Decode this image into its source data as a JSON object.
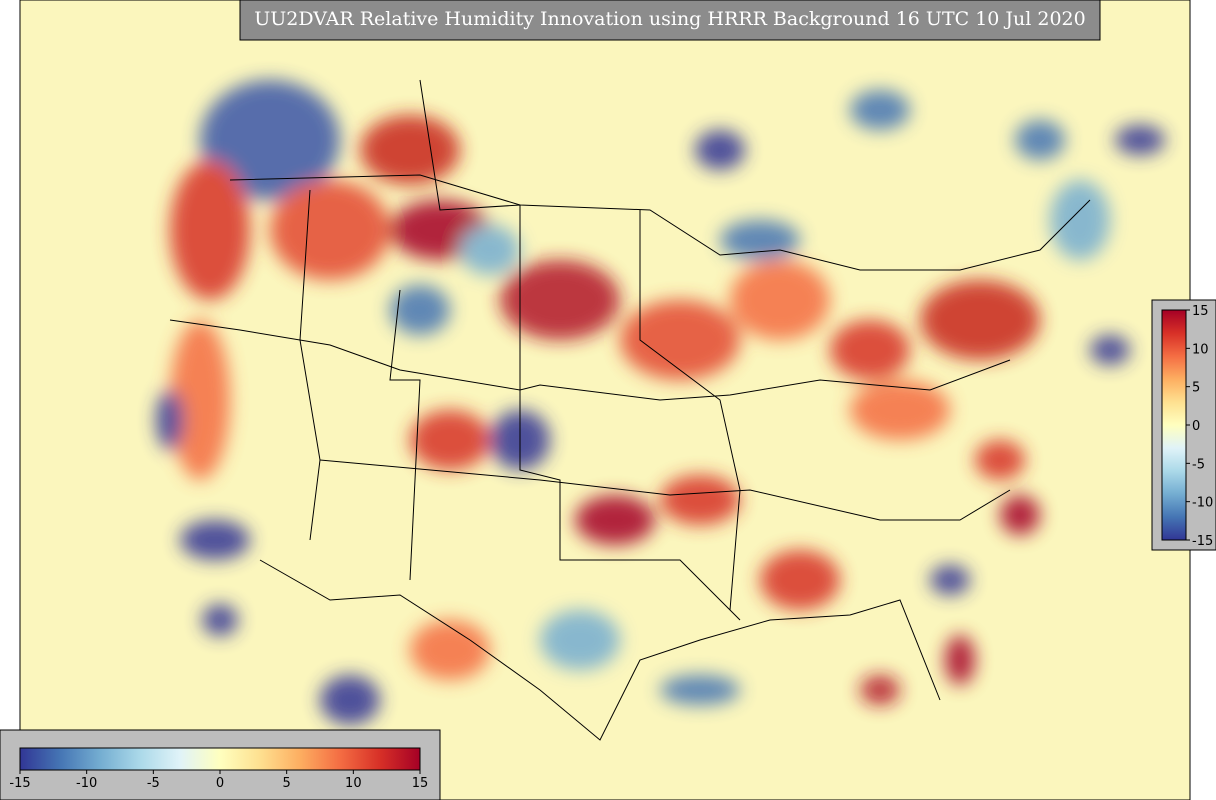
{
  "title": "UU2DVAR Relative Humidity Innovation using HRRR Background 16 UTC 10 Jul 2020",
  "colorbar": {
    "range": [
      -15,
      15
    ],
    "ticks": [
      -15,
      -10,
      -5,
      0,
      5,
      10,
      15
    ],
    "colors": [
      "#313695",
      "#4575b4",
      "#74add1",
      "#abd9e9",
      "#e0f3f8",
      "#ffffbf",
      "#fee090",
      "#fdae61",
      "#f46d43",
      "#d73027",
      "#a50026"
    ]
  }
}
